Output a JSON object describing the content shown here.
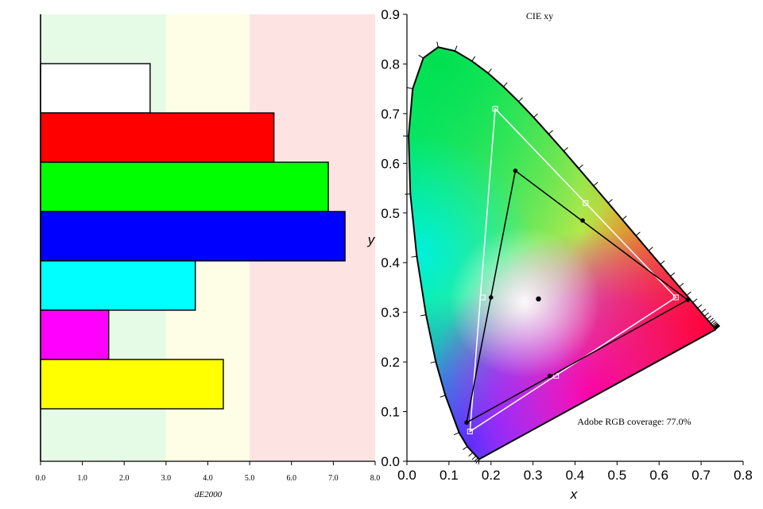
{
  "chart_data": [
    {
      "type": "bar",
      "orientation": "horizontal",
      "xlabel": "dE2000",
      "xlim": [
        0,
        8
      ],
      "xticks": [
        "0.0",
        "1.0",
        "2.0",
        "3.0",
        "4.0",
        "5.0",
        "6.0",
        "7.0",
        "8.0"
      ],
      "zones": [
        {
          "from": 0,
          "to": 3,
          "color": "#e6fbe6"
        },
        {
          "from": 3,
          "to": 5,
          "color": "#fefde6"
        },
        {
          "from": 5,
          "to": 8,
          "color": "#fee3e3"
        }
      ],
      "bars": [
        {
          "color": "#ffffff",
          "value": 2.62
        },
        {
          "color": "#ff0000",
          "value": 5.58
        },
        {
          "color": "#00ff00",
          "value": 6.88
        },
        {
          "color": "#0000ff",
          "value": 7.28
        },
        {
          "color": "#00ffff",
          "value": 3.7
        },
        {
          "color": "#ff00ff",
          "value": 1.63
        },
        {
          "color": "#ffff00",
          "value": 4.37
        }
      ]
    },
    {
      "type": "scatter",
      "title": "CIE xy",
      "xlabel": "x",
      "ylabel": "y",
      "xlim": [
        0,
        0.8
      ],
      "ylim": [
        0,
        0.9
      ],
      "xticks": [
        "0.0",
        "0.1",
        "0.2",
        "0.3",
        "0.4",
        "0.5",
        "0.6",
        "0.7",
        "0.8"
      ],
      "yticks": [
        "0.0",
        "0.1",
        "0.2",
        "0.3",
        "0.4",
        "0.5",
        "0.6",
        "0.7",
        "0.8",
        "0.9"
      ],
      "annotation": "Adobe RGB coverage: 77.0%",
      "reference_gamut": {
        "color": "#ffffff",
        "vertices": [
          [
            0.64,
            0.33
          ],
          [
            0.21,
            0.71
          ],
          [
            0.15,
            0.06
          ]
        ],
        "midpoints": [
          [
            0.425,
            0.52
          ],
          [
            0.18,
            0.33
          ],
          [
            0.355,
            0.172
          ]
        ]
      },
      "measured_gamut": {
        "color": "#000000",
        "vertices": [
          [
            0.668,
            0.325
          ],
          [
            0.258,
            0.585
          ],
          [
            0.142,
            0.078
          ]
        ],
        "midpoints": [
          [
            0.418,
            0.485
          ],
          [
            0.2,
            0.33
          ],
          [
            0.34,
            0.172
          ]
        ]
      },
      "white_point": [
        0.313,
        0.327
      ]
    }
  ]
}
